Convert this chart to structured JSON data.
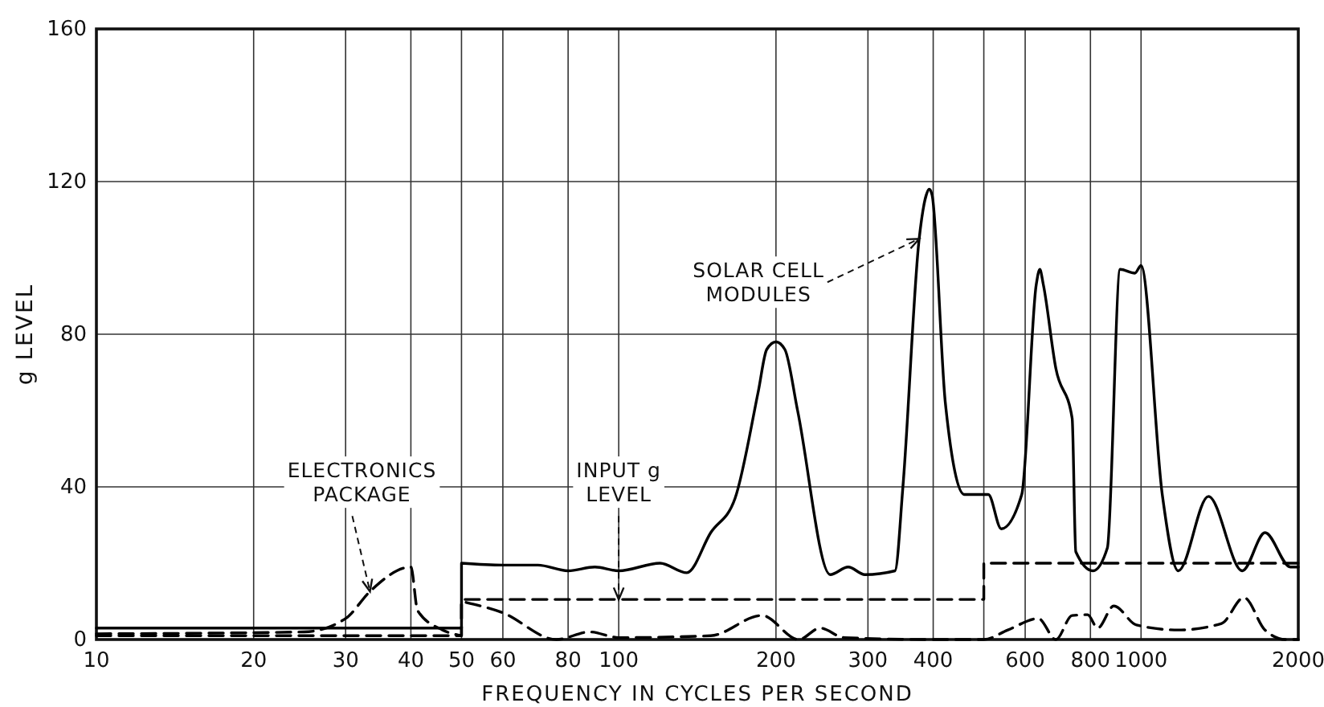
{
  "chart_data": {
    "type": "line",
    "xlabel": "FREQUENCY IN CYCLES PER SECOND",
    "ylabel": "g LEVEL",
    "log": "x",
    "grid": true,
    "marker": "none",
    "xlim": [
      10,
      2000
    ],
    "ylim": [
      0,
      160
    ],
    "xticks": [
      10,
      20,
      30,
      40,
      50,
      60,
      80,
      100,
      200,
      300,
      400,
      {
        "value": 500,
        "label": null
      },
      600,
      800,
      1000,
      2000
    ],
    "yticks": [
      0,
      40,
      80,
      120,
      160
    ],
    "series": [
      {
        "color": "#000000",
        "line_style": "solid",
        "x": [
          10,
          30,
          50,
          50,
          60,
          70,
          80,
          90,
          100,
          120,
          135,
          150,
          167,
          185,
          192,
          200,
          208,
          220,
          254,
          275,
          296,
          338,
          350,
          376,
          388,
          393,
          398,
          422,
          459,
          510,
          540,
          591,
          630,
          640,
          650,
          687,
          738,
          750,
          809,
          862,
          912,
          973,
          1000,
          1098,
          1178,
          1346,
          1563,
          1727,
          1932,
          2000
        ],
        "values": [
          3,
          3,
          3,
          20,
          19.5,
          19.5,
          18,
          19,
          18,
          20,
          17.5,
          28,
          37,
          65,
          76,
          78,
          76,
          60,
          17,
          19,
          17,
          18,
          40,
          105,
          116.5,
          118,
          116.5,
          62,
          38,
          38,
          29,
          38,
          93,
          97,
          93,
          71,
          58,
          23,
          18,
          24,
          97,
          96,
          98,
          38,
          18,
          37.5,
          18,
          28,
          19,
          19
        ]
      },
      {
        "color": "#000000",
        "line_style": "dashed",
        "x": [
          10,
          25,
          30,
          33.4,
          40,
          41.2,
          46,
          50,
          50,
          60,
          76,
          88,
          100,
          150,
          188,
          221,
          243,
          270,
          400,
          500,
          556,
          636,
          687,
          738,
          790,
          826,
          887,
          980,
          1178,
          1426,
          1574,
          1727,
          1892,
          2000
        ],
        "values": [
          1.5,
          2,
          5.5,
          12.6,
          19,
          7.6,
          2.5,
          1,
          10,
          7,
          0,
          2,
          0.5,
          1,
          6.3,
          0,
          3,
          0.5,
          0,
          0,
          2.5,
          5.5,
          0,
          6.3,
          6.5,
          3,
          8.8,
          3.8,
          2.5,
          4.2,
          11,
          2.5,
          0,
          0
        ]
      },
      {
        "color": "#000000",
        "line_style": "dashed",
        "x": [
          10,
          50,
          50,
          500,
          500,
          2000
        ],
        "values": [
          1,
          1,
          10.5,
          10.5,
          20,
          20
        ]
      }
    ],
    "annotations": [
      {
        "text": "SOLAR CELL MODULES",
        "x": 376,
        "y": 105
      },
      {
        "text": "ELECTRONICS PACKAGE",
        "x": 33.4,
        "y": 12.6
      },
      {
        "text": "INPUT g LEVEL",
        "x": 100,
        "y": 10.5
      }
    ]
  }
}
